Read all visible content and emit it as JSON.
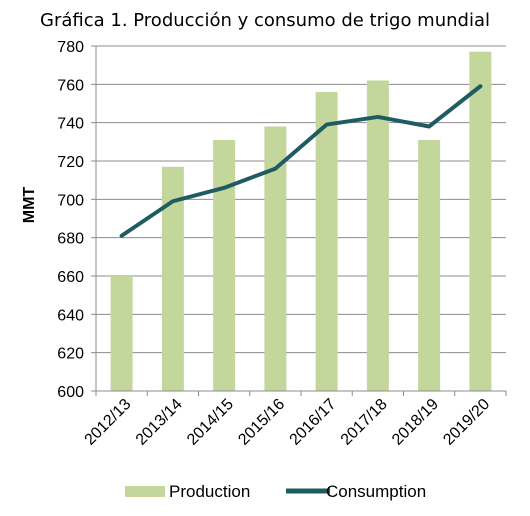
{
  "chart_data": {
    "type": "bar",
    "title": "Gráfica 1. Producción y consumo de trigo mundial",
    "xlabel": "",
    "ylabel": "MMT",
    "ylim": [
      600,
      780
    ],
    "yticks": [
      600,
      620,
      640,
      660,
      680,
      700,
      720,
      740,
      760,
      780
    ],
    "categories": [
      "2012/13",
      "2013/14",
      "2014/15",
      "2015/16",
      "2016/17",
      "2017/18",
      "2018/19",
      "2019/20"
    ],
    "series": [
      {
        "name": "Production",
        "type": "bar",
        "color": "#c3d69b",
        "values": [
          660,
          717,
          731,
          738,
          756,
          762,
          731,
          777
        ]
      },
      {
        "name": "Consumption",
        "type": "line",
        "color": "#1f5c61",
        "values": [
          681,
          699,
          706,
          716,
          739,
          743,
          738,
          759
        ]
      }
    ],
    "grid": true,
    "legend": "bottom"
  }
}
